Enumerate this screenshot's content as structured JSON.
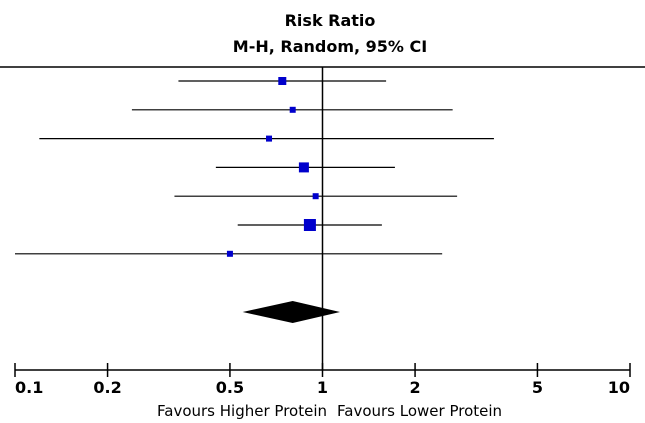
{
  "chart_data": {
    "type": "forest",
    "title": "Risk Ratio",
    "subtitle": "M-H, Random, 95% CI",
    "x_scale": "log",
    "xlim": [
      0.1,
      10
    ],
    "ticks": [
      {
        "value": 0.1,
        "label": "0.1"
      },
      {
        "value": 0.2,
        "label": "0.2"
      },
      {
        "value": 0.5,
        "label": "0.5"
      },
      {
        "value": 1,
        "label": "1"
      },
      {
        "value": 2,
        "label": "2"
      },
      {
        "value": 5,
        "label": "5"
      },
      {
        "value": 10,
        "label": "10"
      }
    ],
    "null_line": 1,
    "studies": [
      {
        "rr": 0.74,
        "lower": 0.34,
        "upper": 1.61
      },
      {
        "rr": 0.8,
        "lower": 0.24,
        "upper": 2.65
      },
      {
        "rr": 0.67,
        "lower": 0.12,
        "upper": 3.61
      },
      {
        "rr": 0.87,
        "lower": 0.45,
        "upper": 1.72
      },
      {
        "rr": 0.95,
        "lower": 0.33,
        "upper": 2.74
      },
      {
        "rr": 0.91,
        "lower": 0.53,
        "upper": 1.56
      },
      {
        "rr": 0.5,
        "lower": 0.1,
        "upper": 2.45
      }
    ],
    "study_weight": [
      3,
      2,
      2,
      4,
      2,
      5,
      2
    ],
    "pooled": {
      "rr": 0.8,
      "lower": 0.55,
      "upper": 1.14
    },
    "favours_left": "Favours Higher Protein",
    "favours_right": "Favours Lower Protein",
    "colors": {
      "marker": "#0000cc",
      "line": "#000000",
      "diamond": "#000000"
    }
  }
}
